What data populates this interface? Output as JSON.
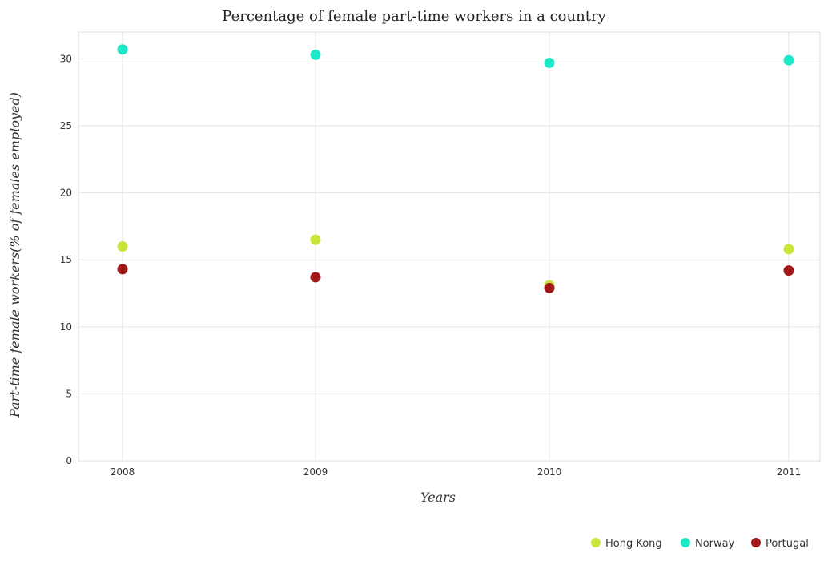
{
  "chart_data": {
    "type": "scatter",
    "title": "Percentage of female part-time workers in a country",
    "xlabel": "Years",
    "ylabel": "Part-time female workers(% of females employed)",
    "categories": [
      "2008",
      "2009",
      "2010",
      "2011"
    ],
    "ylim": [
      0,
      32
    ],
    "yticks": [
      0,
      5,
      10,
      15,
      20,
      25,
      30
    ],
    "grid": true,
    "legend_position": "bottom-right",
    "series": [
      {
        "name": "Hong Kong",
        "color": "#c8e53a",
        "values": [
          16.0,
          16.5,
          13.1,
          15.8
        ]
      },
      {
        "name": "Norway",
        "color": "#1ee8c8",
        "values": [
          30.7,
          30.3,
          29.7,
          29.9
        ]
      },
      {
        "name": "Portugal",
        "color": "#a01818",
        "values": [
          14.3,
          13.7,
          12.9,
          14.2
        ]
      }
    ]
  }
}
